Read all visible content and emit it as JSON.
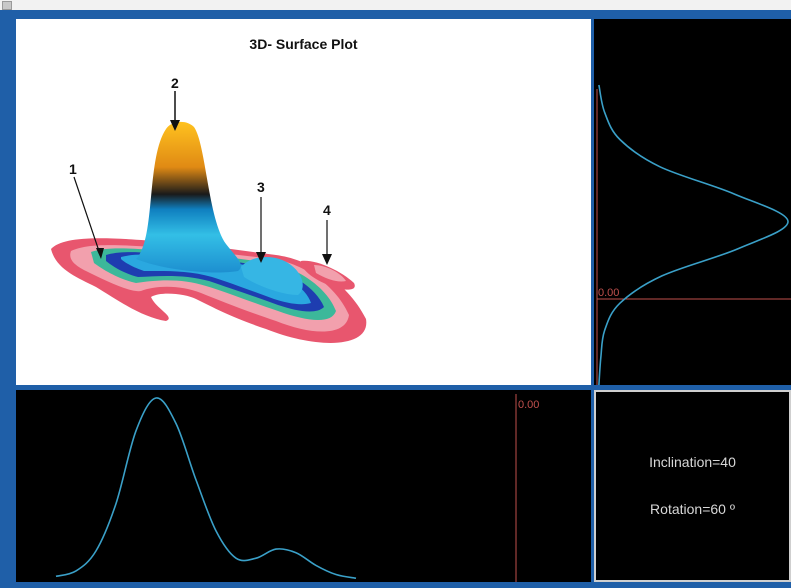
{
  "title": "3D- Surface Plot",
  "callouts": [
    "1",
    "2",
    "3",
    "4"
  ],
  "vertical_profile": {
    "zero_label": "0.00"
  },
  "horizontal_profile": {
    "zero_label": "0.00"
  },
  "info": {
    "inclination": "Inclination=40",
    "rotation": "Rotation=60 º"
  },
  "colors": {
    "frame": "#1f5fa8",
    "profile_line": "#3aa0c8",
    "zero_line": "#c0504d",
    "surface_rim": "#e8566e",
    "peak": "#f7b32b"
  },
  "chart_data": {
    "type": "line",
    "title": "3D- Surface Plot",
    "series": [
      {
        "values": [
          0.02,
          0.05,
          0.16,
          0.42,
          0.82,
          1.0,
          0.86,
          0.55,
          0.27,
          0.12,
          0.12,
          0.17,
          0.15,
          0.08,
          0.03,
          0.01
        ]
      },
      {
        "values": [
          0.01,
          0.04,
          0.12,
          0.33,
          0.72,
          1.0,
          0.74,
          0.34,
          0.12,
          0.04,
          0.02,
          0.01
        ]
      }
    ]
  }
}
